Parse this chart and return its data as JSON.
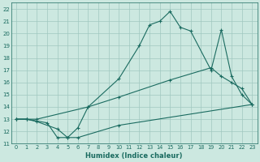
{
  "xlabel": "Humidex (Indice chaleur)",
  "background_color": "#cce8e0",
  "grid_color": "#a0c8c0",
  "line_color": "#1a6b60",
  "xlim": [
    -0.5,
    23.5
  ],
  "ylim": [
    11,
    22.5
  ],
  "xticks": [
    0,
    1,
    2,
    3,
    4,
    5,
    6,
    7,
    8,
    9,
    10,
    11,
    12,
    13,
    14,
    15,
    16,
    17,
    18,
    19,
    20,
    21,
    22,
    23
  ],
  "yticks": [
    11,
    12,
    13,
    14,
    15,
    16,
    17,
    18,
    19,
    20,
    21,
    22
  ],
  "curve1_x": [
    0,
    1,
    3,
    4,
    5,
    6,
    7,
    10,
    12,
    13,
    14,
    15,
    16,
    17,
    19,
    20,
    21,
    22,
    23
  ],
  "curve1_y": [
    13,
    13,
    12.7,
    11.5,
    11.5,
    12.3,
    14.0,
    16.3,
    19.0,
    20.7,
    21.0,
    21.8,
    20.5,
    20.2,
    17.0,
    20.3,
    16.5,
    15.0,
    14.2
  ],
  "curve2_x": [
    0,
    1,
    2,
    7,
    10,
    15,
    19,
    20,
    21,
    22,
    23
  ],
  "curve2_y": [
    13,
    13,
    13,
    14.0,
    14.8,
    16.2,
    17.2,
    16.5,
    16.0,
    15.5,
    14.2
  ],
  "curve3_x": [
    0,
    1,
    2,
    4,
    5,
    6,
    10,
    23
  ],
  "curve3_y": [
    13,
    13,
    12.8,
    12.2,
    11.5,
    11.5,
    12.5,
    14.2
  ]
}
